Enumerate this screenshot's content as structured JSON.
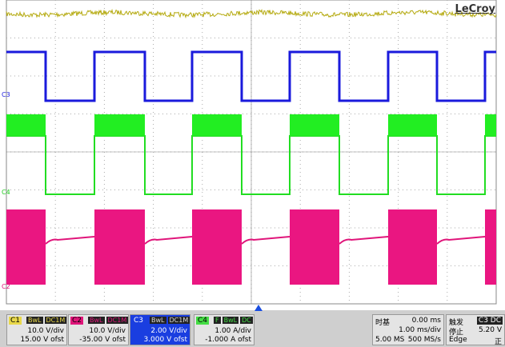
{
  "brand": "LeCroy",
  "channel_markers": [
    "C3",
    "C4",
    "C2"
  ],
  "channels": [
    {
      "id": "C1",
      "tags": [
        "BwL",
        "DC1M"
      ],
      "scale": "10.0 V/div",
      "offset": "15.00 V ofst"
    },
    {
      "id": "C2",
      "tags": [
        "BwL",
        "DC1M"
      ],
      "scale": "10.0 V/div",
      "offset": "-35.00 V ofst"
    },
    {
      "id": "C3",
      "tags": [
        "BwL",
        "DC1M"
      ],
      "scale": "2.00 V/div",
      "offset": "3.000 V ofst"
    },
    {
      "id": "C4",
      "tags": [
        "F",
        "BwL",
        "DC"
      ],
      "scale": "1.00 A/div",
      "offset": "-1.000 A ofst"
    }
  ],
  "timebase": {
    "label": "时基",
    "delay": "0.00 ms",
    "scale": "1.00 ms/div",
    "samples": "5.00 MS",
    "rate": "500 MS/s"
  },
  "trigger": {
    "label": "触发",
    "source": "C3 DC",
    "state": "停止",
    "level": "5.20 V",
    "mode": "Edge",
    "slope": "正"
  }
}
